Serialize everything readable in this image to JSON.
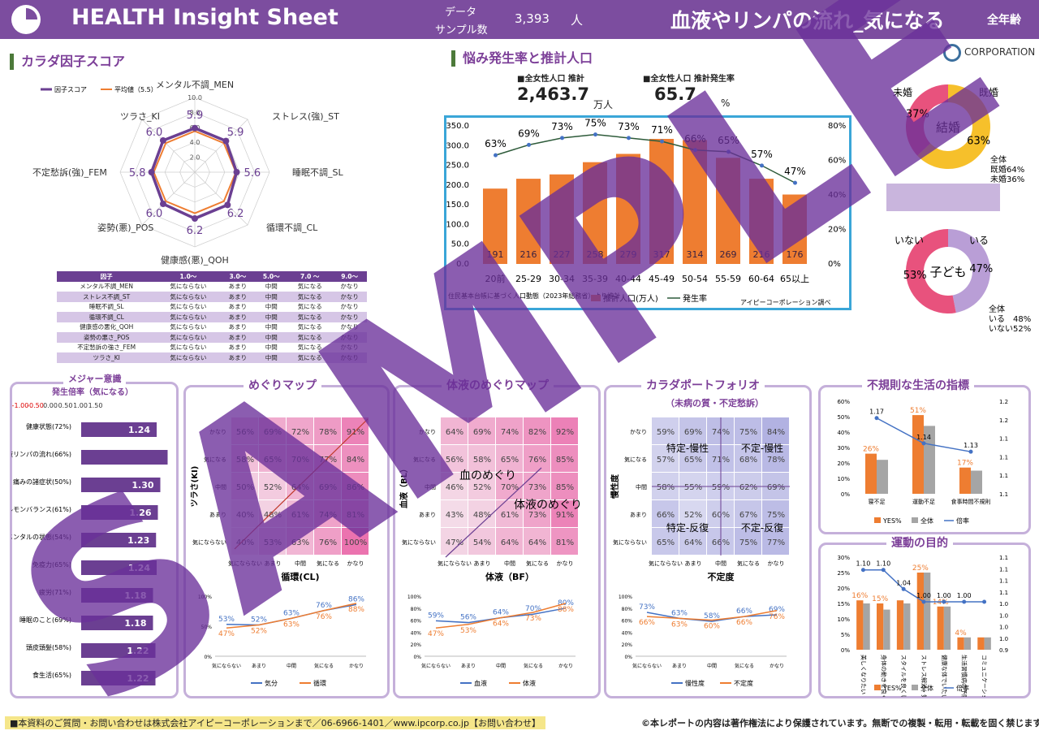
{
  "header": {
    "title": "HEALTH Insight Sheet",
    "data_label_1": "データ",
    "data_label_2": "サンプル数",
    "sample_count": "3,393",
    "sample_unit": "人",
    "theme": "血液やリンパの流れ_気になる",
    "age": "全年齢"
  },
  "corp": {
    "name": "CORPORATION",
    "mark": "IP"
  },
  "sections": {
    "body_score": "カラダ因子スコア",
    "concern": "悩み発生率と推計人口"
  },
  "radar": {
    "legend_factor": "因子スコア",
    "legend_avg": "平均値（5.5）",
    "ticks": [
      "10.0",
      "8.0",
      "6.0",
      "4.0",
      "2.0"
    ],
    "labels": [
      "メンタル不調_MEN",
      "ストレス(強)_ST",
      "睡眠不調_SL",
      "循環不調_CL",
      "健康感(悪)_QOH",
      "姿勢(悪)_POS",
      "不定愁訴(強)_FEM",
      "ツラさ_KI"
    ],
    "values": [
      "5.9",
      "5.9",
      "5.6",
      "6.2",
      "6.2",
      "6.0",
      "5.8",
      "6.0"
    ]
  },
  "factor_table": {
    "header": [
      "因子",
      "1.0～",
      "3.0～",
      "5.0～",
      "7.0 ～",
      "9.0～"
    ],
    "rows": [
      [
        "メンタル不調_MEN",
        "気にならない",
        "あまり",
        "中間",
        "気になる",
        "かなり"
      ],
      [
        "ストレス不調_ST",
        "気にならない",
        "あまり",
        "中間",
        "気になる",
        "かなり"
      ],
      [
        "睡眠不調_SL",
        "気にならない",
        "あまり",
        "中間",
        "気になる",
        "かなり"
      ],
      [
        "循環不調_CL",
        "気にならない",
        "あまり",
        "中間",
        "気になる",
        "かなり"
      ],
      [
        "健康感の悪化_QOH",
        "気にならない",
        "あまり",
        "中間",
        "気になる",
        "かなり"
      ],
      [
        "姿勢の悪さ_POS",
        "気にならない",
        "あまり",
        "中間",
        "気になる",
        "かなり"
      ],
      [
        "不定愁訴の強さ_FEM",
        "気にならない",
        "あまり",
        "中間",
        "気になる",
        "かなり"
      ],
      [
        "ツラさ_KI",
        "気にならない",
        "あまり",
        "中間",
        "気になる",
        "かなり"
      ]
    ]
  },
  "population": {
    "label_pop": "■全女性人口 推計",
    "value_pop": "2,463.7",
    "unit_pop": "万人",
    "label_rate": "■全女性人口 推計発生率",
    "value_rate": "65.7",
    "unit_rate": "%"
  },
  "chart_data": [
    {
      "id": "age_chart",
      "type": "bar",
      "categories": [
        "20前",
        "25-29",
        "30-34",
        "35-39",
        "40-44",
        "45-49",
        "50-54",
        "55-59",
        "60-64",
        "65以上"
      ],
      "series": [
        {
          "name": "推計人口(万人)",
          "values": [
            191,
            216,
            227,
            258,
            279,
            317,
            314,
            269,
            216,
            176
          ]
        },
        {
          "name": "発生率",
          "values": [
            63,
            69,
            73,
            75,
            73,
            71,
            66,
            65,
            57,
            47
          ]
        }
      ],
      "y_ticks": [
        "350.0",
        "300.0",
        "250.0",
        "200.0",
        "150.0",
        "100.0",
        "50.0",
        "0.0"
      ],
      "y2_ticks": [
        "80%",
        "60%",
        "40%",
        "20%",
        "0%"
      ],
      "ylim": [
        0,
        350
      ],
      "y2lim": [
        0,
        80
      ],
      "source": "住民基本台帳に基づく人口動態（2023年総務省）より推計",
      "credit": "アイピーコーポレーション調べ"
    },
    {
      "id": "marriage",
      "type": "pie",
      "title": "結婚",
      "labels": [
        "既婚",
        "未婚"
      ],
      "values": [
        63,
        37
      ],
      "display": [
        "63%",
        "37%"
      ],
      "note": [
        "全体",
        "既婚64%",
        "未婚36%"
      ]
    },
    {
      "id": "children",
      "type": "pie",
      "title": "子ども",
      "labels": [
        "いる",
        "いない"
      ],
      "values": [
        47,
        53
      ],
      "display": [
        "47%",
        "53%"
      ],
      "note": [
        "全体",
        "いる　48%",
        "いない52%"
      ]
    },
    {
      "id": "major",
      "type": "bar",
      "title": "メジャー意識",
      "subtitle": "発生倍率（気になる）",
      "x_ticks": [
        "-1.00",
        "-0.50",
        "0.00",
        "0.50",
        "1.00",
        "1.50"
      ],
      "categories": [
        "健康状態(72%)",
        "血液リンパの流れ(66%)",
        "痛みの諸症状(50%)",
        "ホルモンバランス(61%)",
        "メンタルの状態(54%)",
        "免疫力(65%)",
        "疲労(71%)",
        "睡眠のこと(69%)",
        "頭皮頭髪(58%)",
        "食生活(65%)"
      ],
      "values": [
        1.24,
        1.42,
        1.3,
        1.26,
        1.23,
        1.24,
        1.18,
        1.18,
        1.22,
        1.22
      ],
      "display": [
        "1.24",
        "",
        "1.30",
        "1.26",
        "1.23",
        "1.24",
        "1.18",
        "1.18",
        "1.22",
        "1.22"
      ]
    },
    {
      "id": "irregular",
      "type": "bar",
      "title": "不規則な生活の指標",
      "categories": [
        "寝不足",
        "運動不足",
        "食事時間不規則"
      ],
      "series": [
        {
          "name": "YES%",
          "values": [
            26,
            51,
            17
          ],
          "display": [
            "26%",
            "51%",
            "17%"
          ]
        },
        {
          "name": "全体",
          "values": [
            22,
            44,
            15
          ]
        },
        {
          "name": "倍率",
          "values": [
            1.17,
            1.14,
            1.13
          ],
          "display": [
            "1.17",
            "1.14",
            "1.13"
          ]
        }
      ],
      "y_ticks": [
        "60%",
        "50%",
        "40%",
        "30%",
        "20%",
        "10%",
        "0%"
      ],
      "y2_ticks": [
        "1.2",
        "1.2",
        "1.1",
        "1.1",
        "1.1",
        "1.1"
      ]
    },
    {
      "id": "exercise",
      "type": "bar",
      "title": "運動の目的",
      "categories": [
        "美しくなりたい",
        "身体の動きを良くしたい",
        "スタイルを良くしたい",
        "ストレス解消・気分転換",
        "健康な体でいたい",
        "生活習慣病の予防",
        "コミュニケーション"
      ],
      "series": [
        {
          "name": "YES%",
          "values": [
            16,
            15,
            16,
            25,
            14,
            4,
            4
          ],
          "display": [
            "16%",
            "15%",
            "",
            "25%",
            "14%",
            "4%",
            ""
          ]
        },
        {
          "name": "全体",
          "values": [
            15,
            13,
            15,
            25,
            14,
            4,
            4
          ]
        },
        {
          "name": "倍率",
          "values": [
            1.1,
            1.1,
            1.04,
            1.0,
            1.0,
            1.0,
            1.0
          ],
          "display": [
            "1.10",
            "1.10",
            "1.04",
            "1.00",
            "1.00",
            "1.00",
            ""
          ]
        }
      ],
      "y_ticks": [
        "30%",
        "25%",
        "20%",
        "15%",
        "10%",
        "5%",
        "0%"
      ],
      "y2_ticks": [
        "1.1",
        "1.1",
        "1.1",
        "1.1",
        "1.0",
        "1.0",
        "1.0",
        "1.0",
        "0.9"
      ]
    },
    {
      "id": "meguri",
      "type": "heatmap",
      "title": "めぐりマップ",
      "ylabel": "ツラさ(KI)",
      "xlabel": "循環(CL)",
      "rows": [
        "かなり",
        "気になる",
        "中間",
        "あまり",
        "気にならない"
      ],
      "cols": [
        "気にならない",
        "あまり",
        "中間",
        "気になる",
        "かなり"
      ],
      "values": [
        [
          56,
          69,
          72,
          78,
          91
        ],
        [
          58,
          65,
          70,
          77,
          84
        ],
        [
          50,
          52,
          64,
          69,
          86
        ],
        [
          40,
          48,
          61,
          74,
          81
        ],
        [
          40,
          53,
          63,
          76,
          100
        ]
      ],
      "line": {
        "series": [
          {
            "name": "気分",
            "values": [
              53,
              52,
              63,
              76,
              86
            ]
          },
          {
            "name": "循環",
            "values": [
              47,
              52,
              63,
              76,
              88
            ]
          }
        ],
        "y_ticks": [
          "100%",
          "50%",
          "0%"
        ]
      }
    },
    {
      "id": "taieki",
      "type": "heatmap",
      "title": "体液のめぐりマップ",
      "ylabel": "血液（BL）",
      "xlabel": "体液（BF）",
      "overlay": [
        "血のめぐり",
        "体液のめぐり"
      ],
      "rows": [
        "かなり",
        "気になる",
        "中間",
        "あまり",
        "気にならない"
      ],
      "cols": [
        "気にならない",
        "あまり",
        "中間",
        "気になる",
        "かなり"
      ],
      "values": [
        [
          64,
          69,
          74,
          82,
          92
        ],
        [
          56,
          58,
          65,
          76,
          85
        ],
        [
          46,
          52,
          70,
          73,
          85
        ],
        [
          43,
          48,
          61,
          73,
          91
        ],
        [
          47,
          54,
          64,
          64,
          81
        ]
      ],
      "line": {
        "series": [
          {
            "name": "血液",
            "values": [
              59,
              56,
              64,
              70,
              80
            ]
          },
          {
            "name": "体液",
            "values": [
              47,
              53,
              64,
              73,
              88
            ]
          }
        ],
        "y_ticks": [
          "100%",
          "80%",
          "60%",
          "40%",
          "20%",
          "0%"
        ]
      }
    },
    {
      "id": "portfolio",
      "type": "heatmap",
      "title": "カラダポートフォリオ",
      "subtitle": "（未病の質・不定愁訴）",
      "ylabel": "慢性度",
      "xlabel": "不定度",
      "quadrants": [
        "特定-慢性",
        "不定-慢性",
        "特定-反復",
        "不定-反復"
      ],
      "rows": [
        "かなり",
        "気になる",
        "中間",
        "あまり",
        "気にならない"
      ],
      "cols": [
        "気にならない",
        "あまり",
        "中間",
        "気になる",
        "かなり"
      ],
      "values": [
        [
          59,
          69,
          74,
          75,
          84
        ],
        [
          57,
          65,
          71,
          68,
          78
        ],
        [
          58,
          55,
          59,
          62,
          69
        ],
        [
          66,
          52,
          60,
          67,
          75
        ],
        [
          65,
          64,
          66,
          75,
          77
        ]
      ],
      "line": {
        "series": [
          {
            "name": "慢性度",
            "values": [
              73,
              63,
              58,
              66,
              69
            ]
          },
          {
            "name": "不定度",
            "values": [
              66,
              63,
              60,
              66,
              76
            ]
          }
        ],
        "y_ticks": [
          "100%",
          "80%",
          "60%",
          "40%",
          "20%",
          "0%"
        ]
      }
    }
  ],
  "watermark": "SAMPLE",
  "footer": {
    "left": "■本資料のご質問・お問い合わせは株式会社アイピーコーポレーションまで／06-6966-1401／www.ipcorp.co.jp【お問い合わせ】",
    "right": "©本レポートの内容は著作権法により保護されています。無断での複製・転用・転載を固く禁じます。"
  }
}
